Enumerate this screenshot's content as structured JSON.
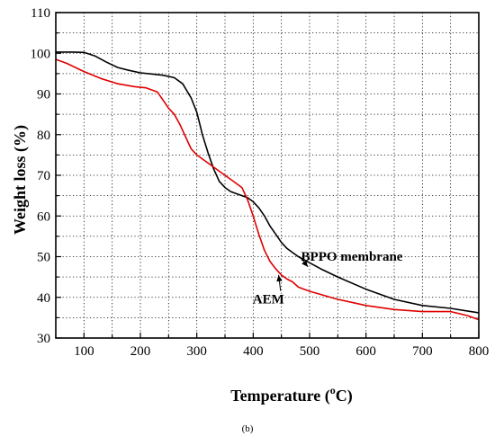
{
  "chart_data": {
    "type": "line",
    "title": "",
    "xlabel": "Temperature (",
    "xlabel_sup": "o",
    "xlabel_tail": "C)",
    "ylabel": "Weight loss (%)",
    "caption": "(b)",
    "xlim": [
      50,
      800
    ],
    "ylim": [
      30,
      110
    ],
    "x_ticks": [
      100,
      200,
      300,
      400,
      500,
      600,
      700,
      800
    ],
    "y_ticks": [
      30,
      40,
      50,
      60,
      70,
      80,
      90,
      100,
      110
    ],
    "x_minor_step": 50,
    "y_minor_step": 5,
    "grid": true,
    "series": [
      {
        "name": "BPPO membrane",
        "color": "#000000",
        "x": [
          50,
          80,
          100,
          120,
          140,
          160,
          180,
          200,
          220,
          240,
          260,
          275,
          290,
          300,
          310,
          320,
          330,
          340,
          350,
          360,
          370,
          380,
          390,
          400,
          410,
          420,
          430,
          440,
          450,
          460,
          470,
          480,
          500,
          520,
          550,
          600,
          650,
          700,
          750,
          800
        ],
        "values": [
          100.3,
          100.3,
          100.2,
          99.3,
          97.8,
          96.5,
          95.8,
          95.2,
          94.9,
          94.6,
          94.0,
          92.5,
          89.0,
          85.5,
          80.0,
          75.5,
          71.5,
          68.5,
          67.0,
          66.0,
          65.5,
          65.0,
          64.5,
          63.5,
          62.0,
          60.0,
          57.5,
          55.5,
          53.5,
          52.0,
          51.0,
          50.0,
          48.5,
          47.0,
          45.0,
          42.0,
          39.5,
          38.0,
          37.3,
          36.2
        ]
      },
      {
        "name": "AEM",
        "color": "#e00000",
        "x": [
          50,
          70,
          100,
          130,
          160,
          190,
          210,
          230,
          240,
          250,
          260,
          270,
          280,
          290,
          300,
          320,
          340,
          360,
          380,
          390,
          400,
          410,
          420,
          430,
          440,
          450,
          460,
          470,
          480,
          500,
          550,
          600,
          650,
          700,
          750,
          780,
          800
        ],
        "values": [
          98.5,
          97.5,
          95.5,
          93.8,
          92.5,
          91.8,
          91.5,
          90.5,
          88.5,
          86.5,
          85.0,
          82.5,
          79.5,
          76.5,
          75.0,
          73.0,
          71.0,
          69.0,
          67.0,
          64.0,
          60.0,
          55.5,
          51.5,
          48.8,
          47.0,
          45.5,
          44.5,
          43.8,
          42.5,
          41.5,
          39.5,
          38.0,
          37.0,
          36.5,
          36.5,
          35.5,
          34.5
        ]
      }
    ],
    "annotations": [
      {
        "text": "BPPO membrane",
        "x": 575,
        "y": 49,
        "arrow_to_x": 497,
        "arrow_to_y": 47.5
      },
      {
        "text": "AEM",
        "x": 427,
        "y": 38.5,
        "arrow_to_x": 445,
        "arrow_to_y": 45.5
      }
    ]
  }
}
